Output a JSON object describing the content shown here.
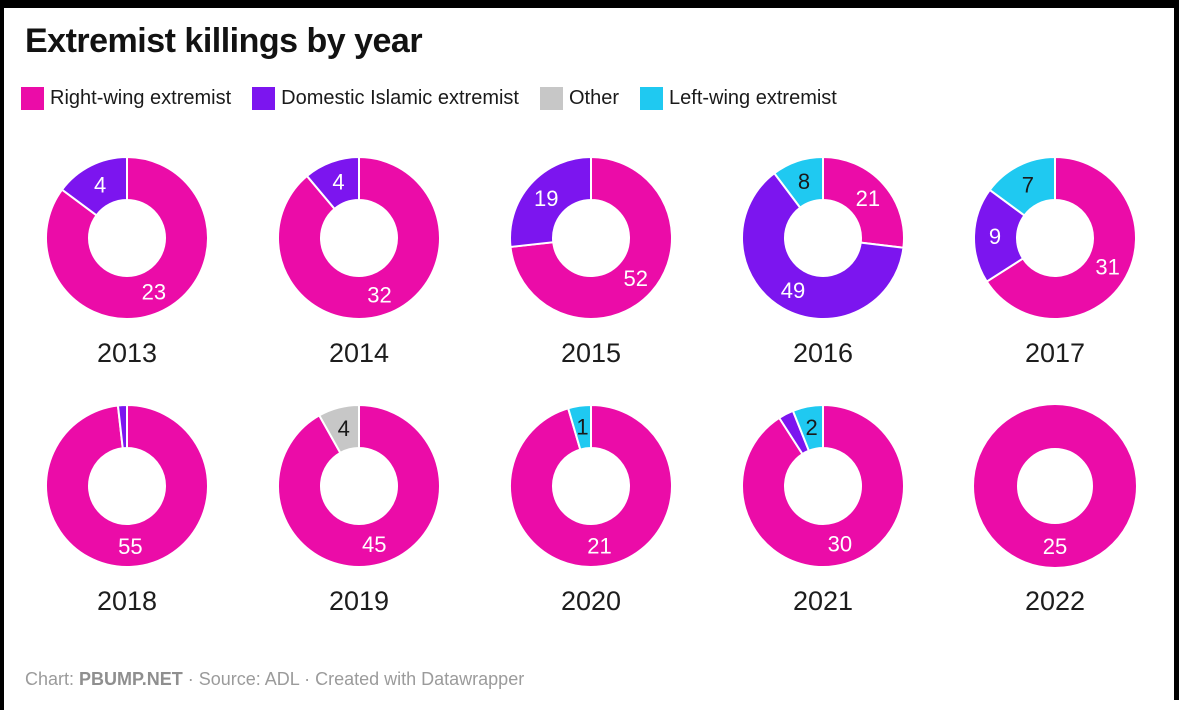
{
  "header": {
    "title": "Extremist killings by year"
  },
  "footer": {
    "prefix": "Chart: ",
    "brand": "PBUMP.NET",
    "rest": " · Source: ADL · Created with Datawrapper"
  },
  "chart_data": {
    "type": "pie",
    "variant": "donut-small-multiples",
    "legend_position": "top",
    "grid": "2 rows x 5 columns",
    "categories": [
      {
        "id": "right-wing",
        "name": "Right-wing extremist",
        "color": "#EB0CA8",
        "label_color": "#ffffff"
      },
      {
        "id": "islamic",
        "name": "Domestic Islamic extremist",
        "color": "#7C15EF",
        "label_color": "#ffffff"
      },
      {
        "id": "other",
        "name": "Other",
        "color": "#C7C7C7",
        "label_color": "#1a1a1a"
      },
      {
        "id": "left-wing",
        "name": "Left-wing extremist",
        "color": "#1FC9F1",
        "label_color": "#1a1a1a"
      }
    ],
    "years": [
      {
        "label": "2013",
        "slices": [
          {
            "category": "right-wing",
            "value": 23,
            "show_label": true
          },
          {
            "category": "islamic",
            "value": 4,
            "show_label": true
          }
        ]
      },
      {
        "label": "2014",
        "slices": [
          {
            "category": "right-wing",
            "value": 32,
            "show_label": true
          },
          {
            "category": "islamic",
            "value": 4,
            "show_label": true
          }
        ]
      },
      {
        "label": "2015",
        "slices": [
          {
            "category": "right-wing",
            "value": 52,
            "show_label": true
          },
          {
            "category": "islamic",
            "value": 19,
            "show_label": true
          }
        ]
      },
      {
        "label": "2016",
        "slices": [
          {
            "category": "right-wing",
            "value": 21,
            "show_label": true
          },
          {
            "category": "islamic",
            "value": 49,
            "show_label": true
          },
          {
            "category": "left-wing",
            "value": 8,
            "show_label": true
          }
        ]
      },
      {
        "label": "2017",
        "slices": [
          {
            "category": "right-wing",
            "value": 31,
            "show_label": true
          },
          {
            "category": "islamic",
            "value": 9,
            "show_label": true
          },
          {
            "category": "left-wing",
            "value": 7,
            "show_label": true
          }
        ]
      },
      {
        "label": "2018",
        "slices": [
          {
            "category": "right-wing",
            "value": 55,
            "show_label": true
          },
          {
            "category": "islamic",
            "value": 1,
            "show_label": false
          }
        ]
      },
      {
        "label": "2019",
        "slices": [
          {
            "category": "right-wing",
            "value": 45,
            "show_label": true
          },
          {
            "category": "other",
            "value": 4,
            "show_label": true
          }
        ]
      },
      {
        "label": "2020",
        "slices": [
          {
            "category": "right-wing",
            "value": 21,
            "show_label": true
          },
          {
            "category": "left-wing",
            "value": 1,
            "show_label": true
          }
        ]
      },
      {
        "label": "2021",
        "slices": [
          {
            "category": "right-wing",
            "value": 30,
            "show_label": true
          },
          {
            "category": "islamic",
            "value": 1,
            "show_label": false
          },
          {
            "category": "left-wing",
            "value": 2,
            "show_label": true
          }
        ]
      },
      {
        "label": "2022",
        "slices": [
          {
            "category": "right-wing",
            "value": 25,
            "show_label": true
          }
        ]
      }
    ]
  }
}
